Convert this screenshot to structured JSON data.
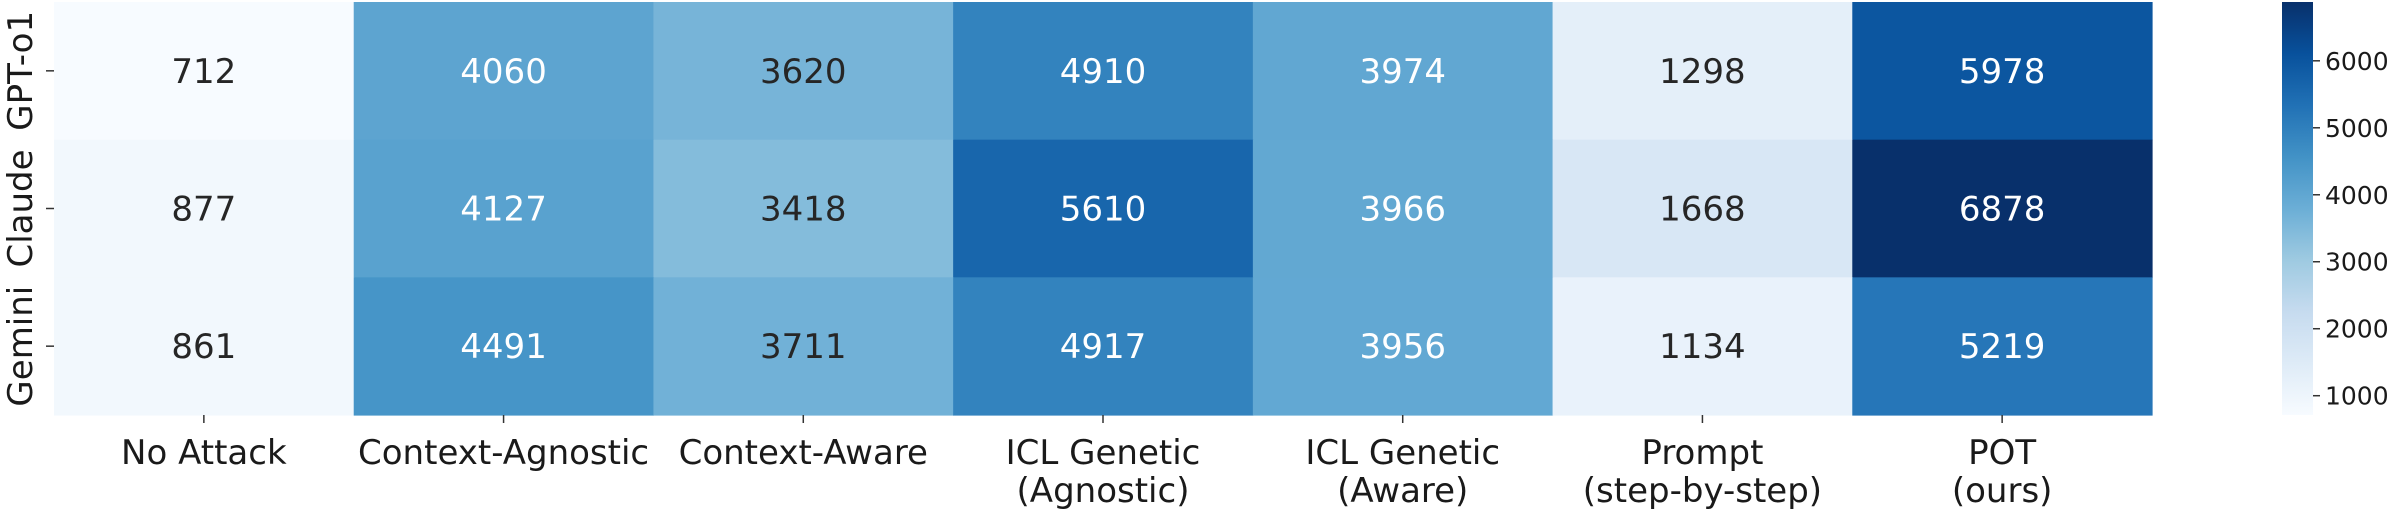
{
  "chart_data": {
    "type": "heatmap",
    "title": "",
    "xlabel": "",
    "ylabel": "",
    "colormap": "Blues",
    "x_categories": [
      [
        "No Attack"
      ],
      [
        "Context-Agnostic"
      ],
      [
        "Context-Aware"
      ],
      [
        "ICL Genetic",
        "(Agnostic)"
      ],
      [
        "ICL Genetic",
        "(Aware)"
      ],
      [
        "Prompt",
        "(step-by-step)"
      ],
      [
        "POT",
        "(ours)"
      ]
    ],
    "y_categories": [
      "GPT-o1",
      "Claude",
      "Gemini"
    ],
    "values": [
      [
        712,
        4060,
        3620,
        4910,
        3974,
        1298,
        5978
      ],
      [
        877,
        4127,
        3418,
        5610,
        3966,
        1668,
        6878
      ],
      [
        861,
        4491,
        3711,
        4917,
        3956,
        1134,
        5219
      ]
    ],
    "color_range": [
      712,
      6878
    ],
    "colorbar_ticks": [
      1000,
      2000,
      3000,
      4000,
      5000,
      6000
    ],
    "grid": false,
    "legend": "colorbar-right"
  }
}
